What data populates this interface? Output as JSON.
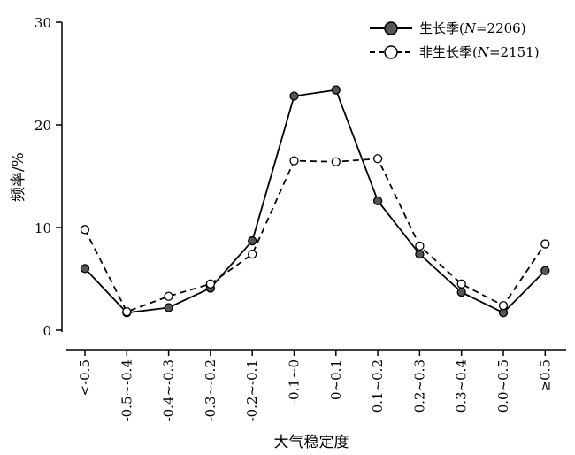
{
  "chart_data": {
    "type": "line",
    "xlabel": "大气稳定度",
    "ylabel": "频率/%",
    "ylim": [
      0,
      30
    ],
    "yticks": [
      0,
      10,
      20,
      30
    ],
    "categories": [
      "<-0.5",
      "-0.5~-0.4",
      "-0.4~-0.3",
      "-0.3~-0.2",
      "-0.2~-0.1",
      "-0.1~0",
      "0~0.1",
      "0.1~0.2",
      "0.2~0.3",
      "0.3~0.4",
      "0.0~0.5",
      "≥0.5"
    ],
    "series": [
      {
        "name": "生长季(N=2206)",
        "label_main": "生长季(",
        "label_var": "N",
        "label_rest": "=2206)",
        "style": "solid",
        "marker": "filled-circle",
        "color": "#000000",
        "values": [
          6.0,
          1.7,
          2.2,
          4.1,
          8.7,
          22.8,
          23.4,
          12.6,
          7.4,
          3.7,
          1.7,
          5.8
        ]
      },
      {
        "name": "非生长季(N=2151)",
        "label_main": "非生长季(",
        "label_var": "N",
        "label_rest": "=2151)",
        "style": "dashed",
        "marker": "open-circle",
        "color": "#000000",
        "values": [
          9.8,
          1.8,
          3.3,
          4.5,
          7.4,
          16.5,
          16.4,
          16.7,
          8.2,
          4.5,
          2.4,
          8.4
        ]
      }
    ],
    "legend_position": "top-right",
    "grid": false
  }
}
